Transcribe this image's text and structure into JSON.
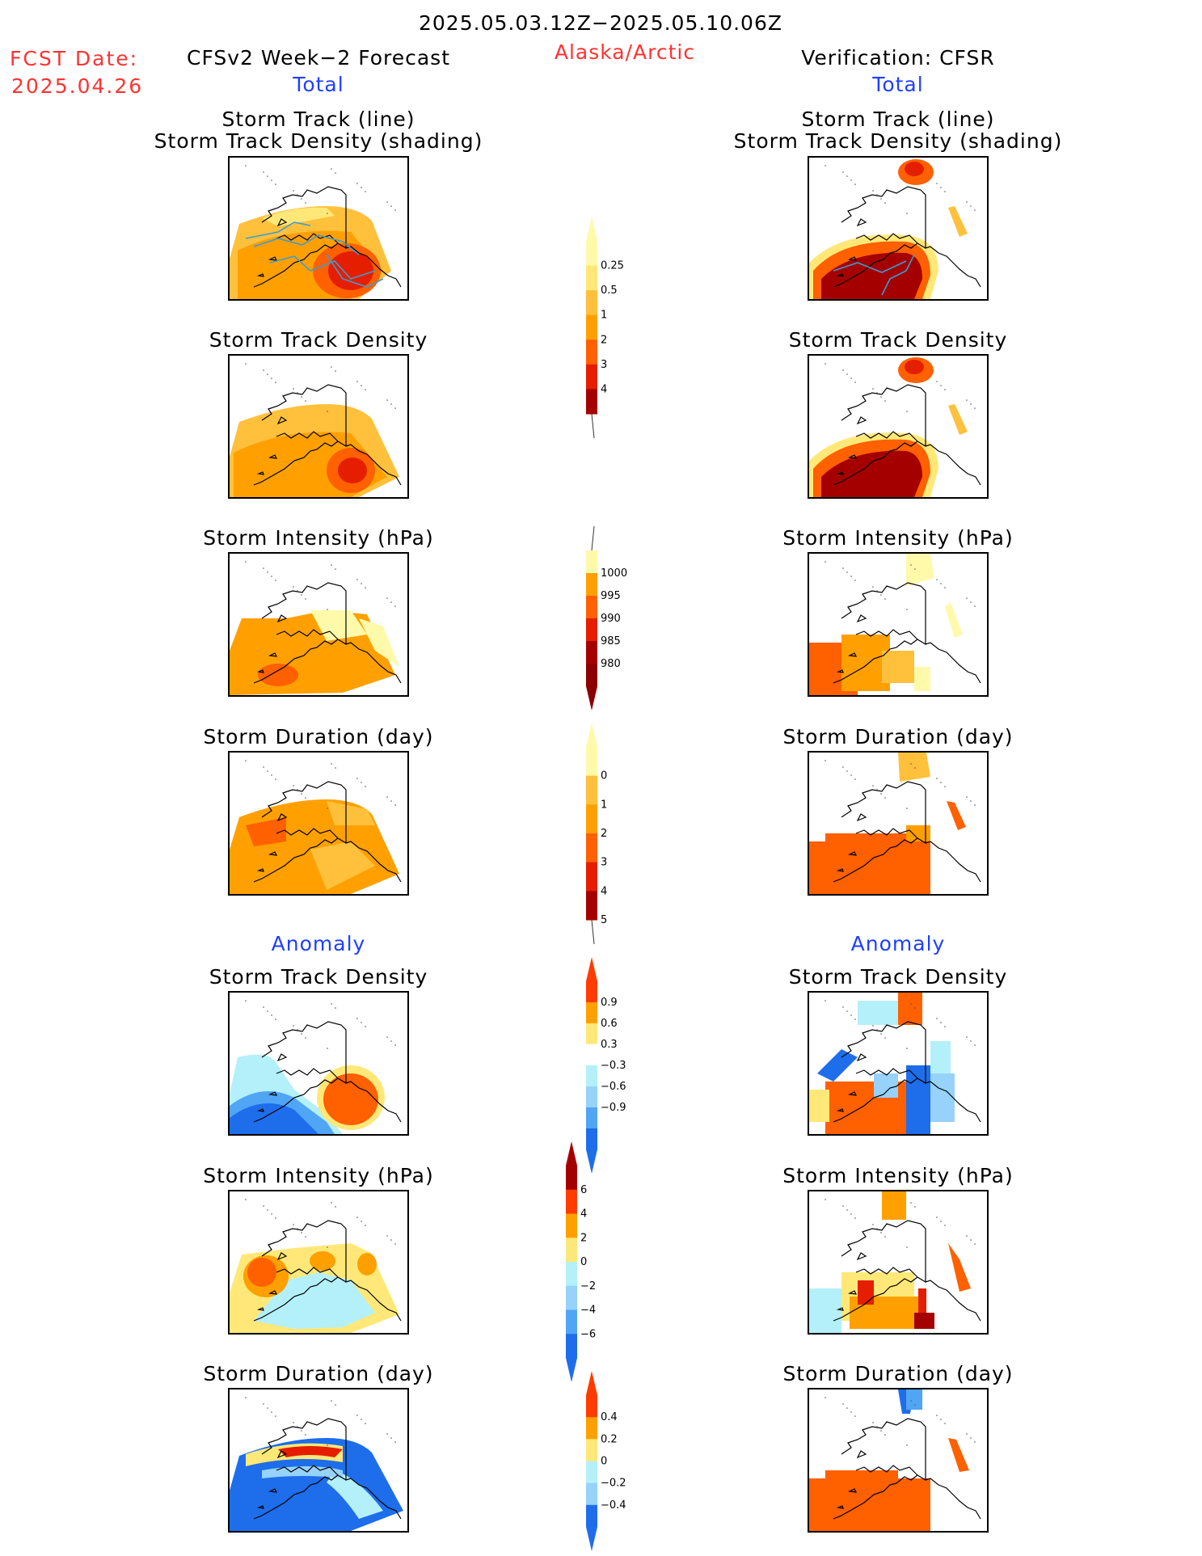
{
  "header": {
    "period": "2025.05.03.12Z−2025.05.10.06Z",
    "region": "Alaska/Arctic",
    "fcst_date_label": "FCST Date:",
    "fcst_date_value": "2025.04.26",
    "left_model": "CFSv2 Week−2 Forecast",
    "right_model": "Verification: CFSR",
    "total_label": "Total",
    "anomaly_label": "Anomaly"
  },
  "panel_titles": {
    "track": "Storm Track (line)",
    "track_density_shading": "Storm Track Density (shading)",
    "density": "Storm Track Density",
    "intensity": "Storm Intensity (hPa)",
    "duration": "Storm Duration (day)"
  },
  "colors": {
    "pale_yellow": "#fffaaa",
    "yellow": "#ffe878",
    "light_orange": "#ffc03c",
    "orange": "#ffa000",
    "dark_orange": "#ff6000",
    "red": "#e61e00",
    "dark_red": "#a50000",
    "light_blue": "#b4f0fa",
    "sky_blue": "#96d2fa",
    "mid_blue": "#50a5f5",
    "blue": "#1e6eeb",
    "track_line": "#3c9cd2"
  },
  "chart_data": [
    {
      "type": "heatmap",
      "name": "colorbar-total-density",
      "levels": [
        "0.25",
        "0.5",
        "1",
        "2",
        "3",
        "4"
      ],
      "colors": [
        "#fffaaa",
        "#ffe878",
        "#ffc03c",
        "#ffa000",
        "#ff6000",
        "#e61e00",
        "#a50000"
      ],
      "open_end": "bottom-line"
    },
    {
      "type": "heatmap",
      "name": "colorbar-total-intensity",
      "levels": [
        "1000",
        "995",
        "990",
        "985",
        "980"
      ],
      "colors": [
        "#fffaaa",
        "#ffa000",
        "#ff6000",
        "#e61e00",
        "#a50000",
        "#8c0000"
      ],
      "open_end": "top-line"
    },
    {
      "type": "heatmap",
      "name": "colorbar-total-duration",
      "levels": [
        "0",
        "1",
        "2",
        "3",
        "4",
        "5"
      ],
      "colors": [
        "#fffaaa",
        "#ffc03c",
        "#ffa000",
        "#ff6000",
        "#e61e00",
        "#a50000"
      ],
      "open_end": "bottom-line"
    },
    {
      "type": "heatmap",
      "name": "colorbar-anom-density",
      "levels": [
        "0.9",
        "0.6",
        "0.3",
        "−0.3",
        "−0.6",
        "−0.9"
      ],
      "colors": [
        "#ff3c00",
        "#ffa000",
        "#ffe878",
        "#ffffff",
        "#b4f0fa",
        "#96d2fa",
        "#50a5f5",
        "#1e6eeb"
      ]
    },
    {
      "type": "heatmap",
      "name": "colorbar-anom-intensity",
      "levels": [
        "6",
        "4",
        "2",
        "0",
        "−2",
        "−4",
        "−6"
      ],
      "colors": [
        "#a50000",
        "#ff3c00",
        "#ffa000",
        "#ffe878",
        "#b4f0fa",
        "#96d2fa",
        "#50a5f5",
        "#1e6eeb"
      ]
    },
    {
      "type": "heatmap",
      "name": "colorbar-anom-duration",
      "levels": [
        "0.4",
        "0.2",
        "0",
        "−0.2",
        "−0.4"
      ],
      "colors": [
        "#ff3c00",
        "#ffa000",
        "#ffe878",
        "#b4f0fa",
        "#96d2fa",
        "#1e6eeb"
      ]
    }
  ]
}
